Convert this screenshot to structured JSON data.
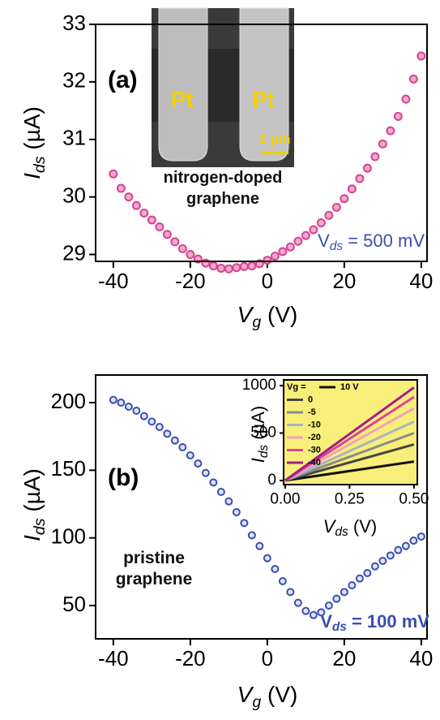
{
  "chart_data": [
    {
      "type": "scatter",
      "xlabel": {
        "main": "V",
        "sub": "g",
        "unit": " (V)"
      },
      "ylabel": {
        "main": "I",
        "sub": "ds",
        "unit": " (µA)"
      },
      "xlim": [
        -44.6,
        41.5
      ],
      "ylim": [
        28.88,
        33
      ],
      "xticks": [
        -40,
        -20,
        0,
        20,
        40
      ],
      "yticks": [
        29,
        30,
        31,
        32,
        33
      ],
      "annotations": [
        {
          "text": "(a)"
        },
        {
          "text": "Pt"
        },
        {
          "text": "Pt"
        },
        {
          "text": "2 µm"
        },
        {
          "text": "nitrogen-doped"
        },
        {
          "text": "graphene"
        },
        {
          "main": "V",
          "sub": "ds",
          "rest": " = 500 mV"
        }
      ],
      "series": [
        {
          "color": "#d6448e",
          "marker": true,
          "x": [
            -40,
            -38,
            -36,
            -34,
            -32,
            -30,
            -28,
            -26,
            -24,
            -22,
            -20,
            -18,
            -16,
            -14,
            -12,
            -10,
            -8,
            -6,
            -4,
            -2,
            0,
            2,
            4,
            6,
            8,
            10,
            12,
            14,
            16,
            18,
            20,
            22,
            24,
            26,
            28,
            30,
            32,
            34,
            36,
            38,
            40
          ],
          "values": [
            30.4,
            30.15,
            30.0,
            29.85,
            29.72,
            29.6,
            29.48,
            29.35,
            29.22,
            29.1,
            29.0,
            28.92,
            28.85,
            28.8,
            28.76,
            28.75,
            28.77,
            28.79,
            28.8,
            28.84,
            28.9,
            28.97,
            29.05,
            29.13,
            29.23,
            29.33,
            29.43,
            29.55,
            29.68,
            29.82,
            29.97,
            30.14,
            30.32,
            30.5,
            30.7,
            30.92,
            31.15,
            31.4,
            31.7,
            32.05,
            32.45
          ]
        }
      ]
    },
    {
      "type": "scatter",
      "xlabel": {
        "main": "V",
        "sub": "g",
        "unit": " (V)"
      },
      "ylabel": {
        "main": "I",
        "sub": "ds",
        "unit": " (µA)"
      },
      "xlim": [
        -44.6,
        41.5
      ],
      "ylim": [
        25.4,
        220.4
      ],
      "xticks": [
        -40,
        -20,
        0,
        20,
        40
      ],
      "yticks": [
        50,
        100,
        150,
        200
      ],
      "annotations": [
        {
          "text": "(b)"
        },
        {
          "text": "pristine"
        },
        {
          "text": "graphene"
        },
        {
          "main": "V",
          "sub": "ds",
          "rest": " = 100 mV"
        }
      ],
      "series": [
        {
          "color": "#3a4fb0",
          "marker": true,
          "x": [
            -40,
            -38,
            -36,
            -34,
            -32,
            -30,
            -28,
            -26,
            -24,
            -22,
            -20,
            -18,
            -16,
            -14,
            -12,
            -10,
            -8,
            -6,
            -4,
            -2,
            0,
            2,
            4,
            6,
            8,
            10,
            12,
            14,
            16,
            18,
            20,
            22,
            24,
            26,
            28,
            30,
            32,
            34,
            36,
            38,
            40
          ],
          "values": [
            202,
            200,
            197,
            194,
            190,
            186,
            182,
            177,
            172,
            167,
            161,
            155,
            148,
            141,
            134,
            127,
            119,
            111,
            102,
            94,
            85,
            77,
            68,
            60,
            52,
            46,
            43,
            45,
            50,
            55,
            60,
            65,
            70,
            74,
            79,
            83,
            87,
            91,
            94,
            98,
            101
          ]
        }
      ]
    },
    {
      "type": "line",
      "background": "#f7ef7a",
      "xlabel": {
        "main": "V",
        "sub": "ds",
        "unit": " (V)"
      },
      "ylabel": {
        "main": "I",
        "sub": "ds",
        "unit": " (µA)"
      },
      "xlim": [
        -0.006,
        0.513
      ],
      "ylim": [
        -43,
        1060
      ],
      "xticks": [
        {
          "value": 0,
          "label": "0.00"
        },
        {
          "value": 0.25,
          "label": "0.25"
        },
        {
          "value": 0.5,
          "label": "0.50"
        }
      ],
      "yticks": [
        0,
        500,
        1000
      ],
      "legend_title": "Vg =",
      "series": [
        {
          "name": "10 V",
          "color": "#111111",
          "x": [
            0,
            0.5
          ],
          "values": [
            0,
            200
          ]
        },
        {
          "name": "0",
          "color": "#454545",
          "x": [
            0,
            0.5
          ],
          "values": [
            0,
            380
          ]
        },
        {
          "name": "-5",
          "color": "#8a8a8a",
          "x": [
            0,
            0.5
          ],
          "values": [
            0,
            500
          ]
        },
        {
          "name": "-10",
          "color": "#aab4c0",
          "x": [
            0,
            0.5
          ],
          "values": [
            0,
            620
          ]
        },
        {
          "name": "-20",
          "color": "#f2a0bc",
          "x": [
            0,
            0.5
          ],
          "values": [
            0,
            760
          ]
        },
        {
          "name": "-30",
          "color": "#e0409e",
          "x": [
            0,
            0.5
          ],
          "values": [
            0,
            880
          ]
        },
        {
          "name": "-40",
          "color": "#a0208a",
          "x": [
            0,
            0.5
          ],
          "values": [
            0,
            980
          ]
        }
      ]
    }
  ]
}
